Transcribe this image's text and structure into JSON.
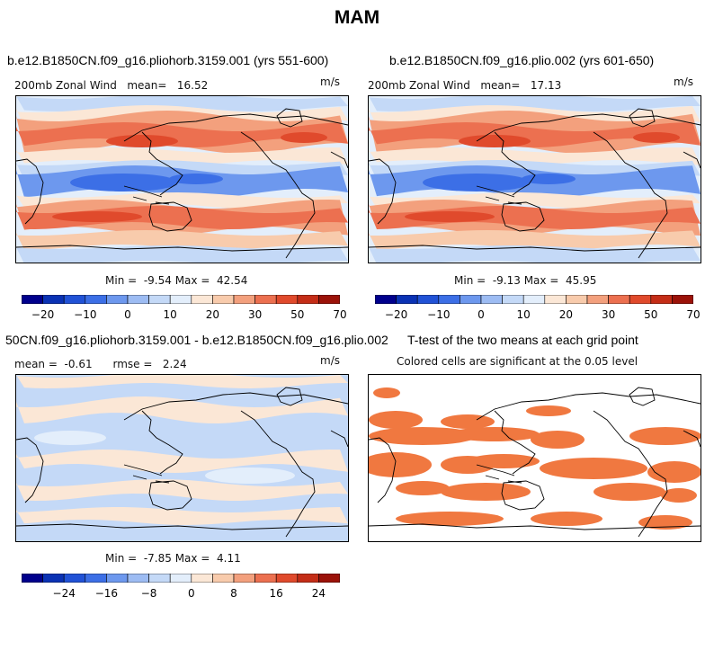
{
  "page": {
    "title": "MAM"
  },
  "panels": [
    {
      "id": "p1",
      "title": "b.e12.B1850CN.f09_g16.pliohorb.3159.001 (yrs 551-600)",
      "variable": "200mb Zonal Wind",
      "stat_label": "mean=",
      "stat_value": "16.52",
      "units": "m/s",
      "min_label": "Min =",
      "min_value": "-9.54",
      "max_label": "Max =",
      "max_value": "42.54"
    },
    {
      "id": "p2",
      "title": "b.e12.B1850CN.f09_g16.plio.002 (yrs 601-650)",
      "variable": "200mb Zonal Wind",
      "stat_label": "mean=",
      "stat_value": "17.13",
      "units": "m/s",
      "min_label": "Min =",
      "min_value": "-9.13",
      "max_label": "Max =",
      "max_value": "45.95"
    },
    {
      "id": "p3",
      "title": "50CN.f09_g16.pliohorb.3159.001 - b.e12.B1850CN.f09_g16.plio.002",
      "mean_label": "mean =",
      "mean_value": "-0.61",
      "rmse_label": "rmse =",
      "rmse_value": "2.24",
      "units": "m/s",
      "min_label": "Min =",
      "min_value": "-7.85",
      "max_label": "Max =",
      "max_value": "4.11"
    },
    {
      "id": "p4",
      "title": "T-test of the two means at each grid point",
      "subtitle": "Colored cells are significant at the 0.05 level"
    }
  ],
  "colorbars": {
    "abs_ticks": [
      "-20",
      "-10",
      "0",
      "10",
      "20",
      "30",
      "50",
      "70"
    ],
    "diff_ticks": [
      "-24",
      "-16",
      "-8",
      "0",
      "8",
      "16",
      "24"
    ],
    "colors": [
      "#00008c",
      "#0a32b4",
      "#2152d6",
      "#3c6fe6",
      "#6d98ee",
      "#9dbcf3",
      "#c4d9f7",
      "#e3eefb",
      "#fbe7d6",
      "#f8cbac",
      "#f3a07d",
      "#ec7050",
      "#e04a2c",
      "#c42d17",
      "#9b1209"
    ],
    "sig_color": "#f07840"
  },
  "chart_data": [
    {
      "type": "heatmap",
      "title": "b.e12.B1850CN.f09_g16.pliohorb.3159.001 (yrs 551-600)",
      "variable": "200mb Zonal Wind",
      "units": "m/s",
      "mean": 16.52,
      "min": -9.54,
      "max": 42.54,
      "levels": [
        -20,
        -15,
        -10,
        -5,
        0,
        5,
        10,
        15,
        20,
        25,
        30,
        40,
        50,
        60,
        70
      ]
    },
    {
      "type": "heatmap",
      "title": "b.e12.B1850CN.f09_g16.plio.002 (yrs 601-650)",
      "variable": "200mb Zonal Wind",
      "units": "m/s",
      "mean": 17.13,
      "min": -9.13,
      "max": 45.95,
      "levels": [
        -20,
        -15,
        -10,
        -5,
        0,
        5,
        10,
        15,
        20,
        25,
        30,
        40,
        50,
        60,
        70
      ]
    },
    {
      "type": "heatmap",
      "title": "50CN.f09_g16.pliohorb.3159.001 - b.e12.B1850CN.f09_g16.plio.002",
      "units": "m/s",
      "mean": -0.61,
      "rmse": 2.24,
      "min": -7.85,
      "max": 4.11,
      "levels": [
        -28,
        -24,
        -20,
        -16,
        -12,
        -8,
        -4,
        0,
        4,
        8,
        12,
        16,
        20,
        24,
        28
      ]
    },
    {
      "type": "heatmap",
      "title": "T-test of the two means at each grid point",
      "subtitle": "Colored cells are significant at the 0.05 level",
      "significance_level": 0.05
    }
  ]
}
